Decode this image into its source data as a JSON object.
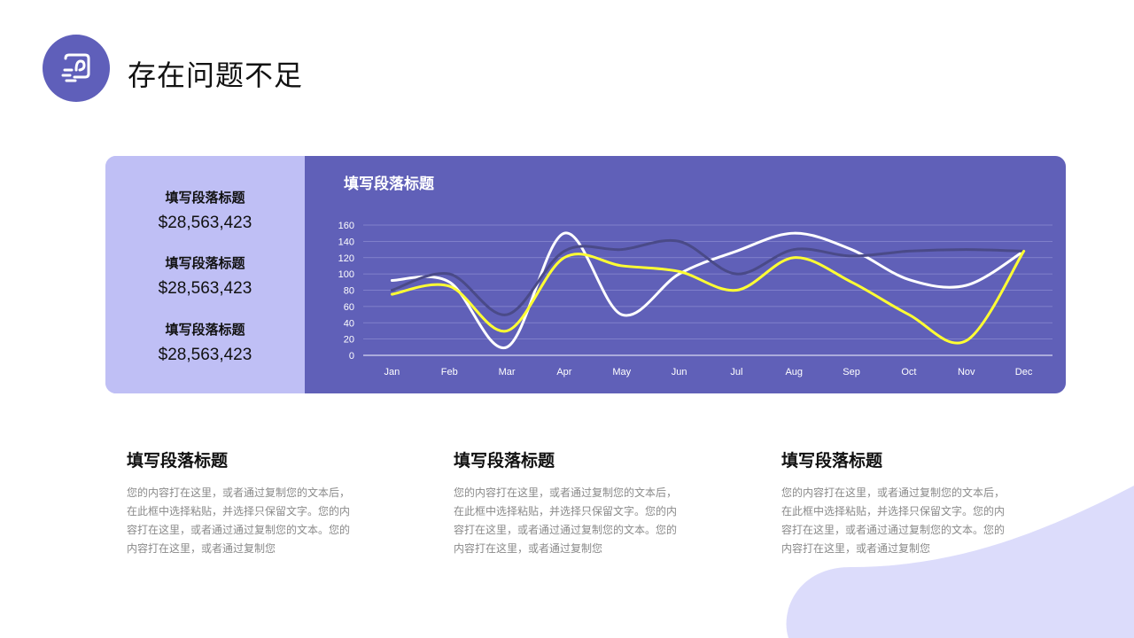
{
  "header": {
    "title": "存在问题不足",
    "icon": "chat-bubble-icon"
  },
  "colors": {
    "accent": "#6060b8",
    "panel_light": "#bfbff5",
    "blob": "#dcdcfb",
    "series_white": "#ffffff",
    "series_dark": "#4a4a88",
    "series_yellow": "#ffff33"
  },
  "stats": [
    {
      "label": "填写段落标题",
      "value": "$28,563,423"
    },
    {
      "label": "填写段落标题",
      "value": "$28,563,423"
    },
    {
      "label": "填写段落标题",
      "value": "$28,563,423"
    }
  ],
  "chart_data": {
    "type": "line",
    "title": "填写段落标题",
    "categories": [
      "Jan",
      "Feb",
      "Mar",
      "Apr",
      "May",
      "Jun",
      "Jul",
      "Aug",
      "Sep",
      "Oct",
      "Nov",
      "Dec"
    ],
    "ylim": [
      0,
      160
    ],
    "yticks": [
      0,
      20,
      40,
      60,
      80,
      100,
      120,
      140,
      160
    ],
    "grid": true,
    "smooth": true,
    "series": [
      {
        "color": "#ffffff",
        "values": [
          92,
          90,
          10,
          150,
          50,
          100,
          128,
          150,
          130,
          93,
          86,
          128
        ]
      },
      {
        "color": "#4a4a88",
        "values": [
          80,
          100,
          50,
          128,
          130,
          140,
          100,
          130,
          122,
          128,
          130,
          128
        ]
      },
      {
        "color": "#ffff33",
        "values": [
          75,
          85,
          30,
          120,
          110,
          103,
          80,
          120,
          90,
          50,
          18,
          128
        ]
      }
    ]
  },
  "columns": [
    {
      "title": "填写段落标题",
      "text": [
        "您的内容打在这里，或者通过复制您的文本后，",
        "在此框中选择粘贴，并选择只保留文字。您的内",
        "容打在这里，或者通过通过复制您的文本。您的",
        "内容打在这里，或者通过复制您"
      ]
    },
    {
      "title": "填写段落标题",
      "text": [
        "您的内容打在这里，或者通过复制您的文本后，",
        "在此框中选择粘贴，并选择只保留文字。您的内",
        "容打在这里，或者通过通过复制您的文本。您的",
        "内容打在这里，或者通过复制您"
      ]
    },
    {
      "title": "填写段落标题",
      "text": [
        "您的内容打在这里，或者通过复制您的文本后，",
        "在此框中选择粘贴，并选择只保留文字。您的内",
        "容打在这里，或者通过通过复制您的文本。您的",
        "内容打在这里，或者通过复制您"
      ]
    }
  ]
}
